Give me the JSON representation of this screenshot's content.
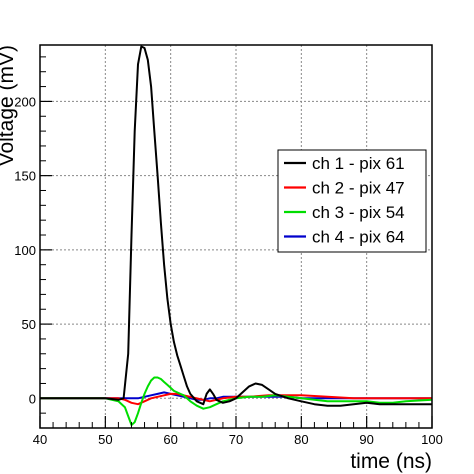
{
  "chart_data": {
    "type": "line",
    "title": "",
    "xlabel": "time (ns)",
    "ylabel": "Voltage (mV)",
    "xlim": [
      40,
      100
    ],
    "ylim": [
      -20,
      238
    ],
    "x_ticks": [
      40,
      50,
      60,
      70,
      80,
      90,
      100
    ],
    "y_ticks": [
      0,
      50,
      100,
      150,
      200
    ],
    "grid": true,
    "legend_position": "right",
    "series": [
      {
        "name": "ch 1 - pix 61",
        "color": "#000000",
        "x": [
          40,
          45,
          50,
          52,
          52.8,
          53.5,
          54,
          54.5,
          55,
          55.5,
          56,
          56.5,
          57,
          57.5,
          58,
          58.5,
          59,
          59.5,
          60,
          60.5,
          61,
          61.5,
          62,
          62.5,
          63,
          64,
          65,
          65.5,
          66,
          66.5,
          67,
          68,
          69,
          70,
          71,
          72,
          73,
          74,
          75,
          76,
          78,
          80,
          82,
          84,
          86,
          88,
          90,
          92,
          95,
          98,
          100
        ],
        "values": [
          0,
          0,
          0,
          -1,
          0,
          30,
          110,
          180,
          225,
          237,
          236,
          228,
          210,
          180,
          150,
          118,
          90,
          67,
          50,
          38,
          29,
          22,
          15,
          8,
          3,
          -2,
          -4,
          3,
          6,
          3,
          -1,
          -3,
          -2,
          0,
          4,
          8,
          10,
          9,
          6,
          3,
          0,
          -2,
          -4,
          -5,
          -5,
          -4,
          -3,
          -4,
          -4,
          -4,
          -4
        ]
      },
      {
        "name": "ch 2 - pix 47",
        "color": "#ff0000",
        "x": [
          40,
          50,
          52,
          53,
          54,
          55,
          56,
          57,
          58,
          59,
          60,
          61,
          62,
          63,
          64,
          65,
          66,
          67,
          68,
          70,
          72,
          75,
          78,
          80,
          84,
          88,
          92,
          96,
          100
        ],
        "values": [
          0,
          0,
          0,
          -1,
          -3,
          -4,
          -2,
          0,
          1,
          2,
          3,
          3,
          2,
          1,
          0,
          -1,
          -2,
          -1,
          0,
          1,
          1,
          2,
          2,
          2,
          1,
          0,
          0,
          0,
          0
        ]
      },
      {
        "name": "ch 3 - pix 54",
        "color": "#00dd00",
        "x": [
          40,
          45,
          50,
          52,
          53,
          53.5,
          54,
          54.5,
          55,
          55.5,
          56,
          56.5,
          57,
          57.5,
          58,
          58.5,
          59,
          59.5,
          60,
          60.5,
          61,
          61.5,
          62,
          62.5,
          63,
          64,
          65,
          66,
          67,
          68,
          70,
          72,
          74,
          76,
          78,
          80,
          82,
          84,
          86,
          88,
          90,
          92,
          94,
          96,
          100
        ],
        "values": [
          0,
          0,
          0,
          -2,
          -6,
          -12,
          -18,
          -16,
          -10,
          -3,
          3,
          8,
          12,
          14,
          14,
          13,
          11,
          9,
          7,
          5,
          4,
          3,
          2,
          0,
          -2,
          -5,
          -7,
          -6,
          -4,
          -2,
          0,
          1,
          1,
          2,
          1,
          0,
          -1,
          -2,
          -2,
          -2,
          -2,
          -3,
          -3,
          -2,
          -1
        ]
      },
      {
        "name": "ch 4 - pix 64",
        "color": "#0000cc",
        "x": [
          40,
          50,
          54,
          55,
          56,
          57,
          58,
          59,
          60,
          61,
          62,
          63,
          64,
          65,
          66,
          67,
          68,
          70,
          72,
          75,
          78,
          80,
          85,
          90,
          95,
          100
        ],
        "values": [
          0,
          0,
          0,
          0,
          1,
          2,
          3,
          4,
          3,
          2,
          1,
          0,
          -1,
          -1,
          0,
          0,
          1,
          1,
          1,
          1,
          1,
          0,
          0,
          0,
          0,
          0
        ]
      }
    ]
  }
}
